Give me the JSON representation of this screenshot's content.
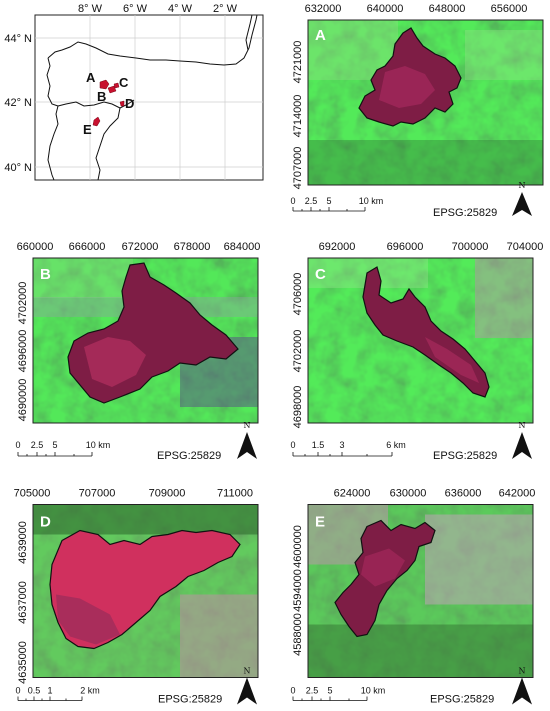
{
  "overview": {
    "lon_labels": [
      "8° W",
      "6° W",
      "4° W",
      "2° W"
    ],
    "lat_labels": [
      "44° N",
      "42° N",
      "40° N"
    ],
    "fire_labels": [
      "A",
      "B",
      "C",
      "D",
      "E"
    ],
    "fire_color": "#c8102e"
  },
  "panels": [
    {
      "id": "A",
      "letter": "A",
      "x_ticks": [
        "632000",
        "640000",
        "648000",
        "656000"
      ],
      "y_ticks": [
        "4721000",
        "4714000",
        "4707000"
      ],
      "scale_labels": [
        "0",
        "2.5",
        "5",
        "10 km"
      ],
      "crs": "EPSG:25829",
      "north": "N"
    },
    {
      "id": "B",
      "letter": "B",
      "x_ticks": [
        "660000",
        "666000",
        "672000",
        "678000",
        "684000"
      ],
      "y_ticks": [
        "4702000",
        "4696000",
        "4690000"
      ],
      "scale_labels": [
        "0",
        "2.5",
        "5",
        "10 km"
      ],
      "crs": "EPSG:25829",
      "north": "N"
    },
    {
      "id": "C",
      "letter": "C",
      "x_ticks": [
        "692000",
        "696000",
        "700000",
        "704000"
      ],
      "y_ticks": [
        "4706000",
        "4702000",
        "4698000"
      ],
      "scale_labels": [
        "0",
        "1.5",
        "3",
        "6 km"
      ],
      "crs": "EPSG:25829",
      "north": "N"
    },
    {
      "id": "D",
      "letter": "D",
      "x_ticks": [
        "705000",
        "707000",
        "709000",
        "711000"
      ],
      "y_ticks": [
        "4639000",
        "4637000",
        "4635000"
      ],
      "scale_labels": [
        "0",
        "0.5",
        "1",
        "2 km"
      ],
      "crs": "EPSG:25829",
      "north": "N"
    },
    {
      "id": "E",
      "letter": "E",
      "x_ticks": [
        "624000",
        "630000",
        "636000",
        "642000"
      ],
      "y_ticks": [
        "4600000",
        "4594000",
        "4588000"
      ],
      "scale_labels": [
        "0",
        "2.5",
        "5",
        "10 km"
      ],
      "crs": "EPSG:25829",
      "north": "N"
    }
  ],
  "colors": {
    "vegetation": "#3f9a3a",
    "burn_scar": "#8a1f48",
    "burn_bright": "#d0305e",
    "bare": "#c98aa8"
  }
}
